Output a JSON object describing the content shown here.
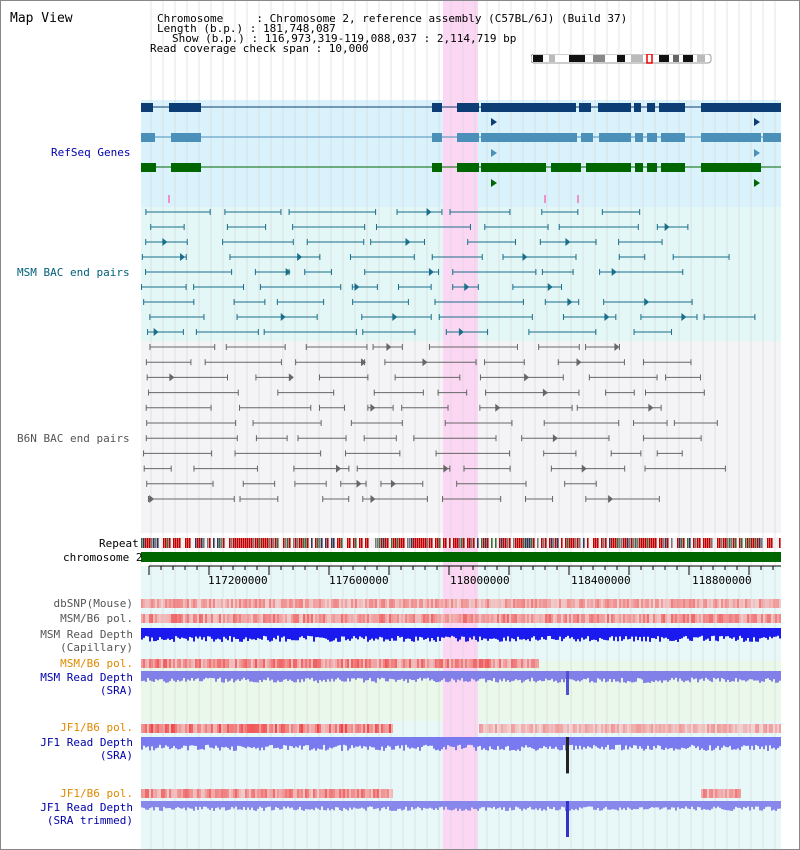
{
  "title": "Map View",
  "info": {
    "chromosome": "Chromosome     : Chromosome 2, reference assembly (C57BL/6J) (Build 37)",
    "length": "Length (b.p.) : 181,748,087",
    "show": "Show (b.p.) : 116,973,319-119,088,037 : 2,114,719 bp",
    "span": "Read coverage check span : 10,000"
  },
  "tracks": {
    "refseq": "RefSeq Genes",
    "msm_bac": "MSM BAC end pairs",
    "b6n_bac": "B6N BAC end pairs",
    "repeat": "Repeat",
    "chromosome": "chromosome 2",
    "dbsnp": "dbSNP(Mouse)",
    "msm_b6_pol_1": "MSM/B6 pol.",
    "msm_depth_cap_1": "MSM Read Depth",
    "msm_depth_cap_2": "(Capillary)",
    "msm_b6_pol_2": "MSM/B6 pol.",
    "msm_depth_sra_1": "MSM Read Depth",
    "msm_depth_sra_2": "(SRA)",
    "jf1_pol_1": "JF1/B6 pol.",
    "jf1_depth_sra_1": "JF1 Read Depth",
    "jf1_depth_sra_2": "(SRA)",
    "jf1_pol_2": "JF1/B6 pol.",
    "jf1_depth_trim_1": "JF1 Read Depth",
    "jf1_depth_trim_2": "(SRA trimmed)"
  },
  "axis": {
    "ticks": [
      "117200000",
      "117600000",
      "118000000",
      "118400000",
      "118800000"
    ]
  },
  "colors": {
    "refseq_bg": "#d9f2fb",
    "msm_bg": "#e4f7f7",
    "b6n_bg": "#f4f4f6",
    "highlight": "#fbd7f3",
    "gene_dark": "#0c3d74",
    "gene_mid": "#4a90b8",
    "gene_green": "#006600",
    "msm_line": "#1a6e8a",
    "b6n_line": "#666666",
    "chrom_green": "#006600"
  }
}
